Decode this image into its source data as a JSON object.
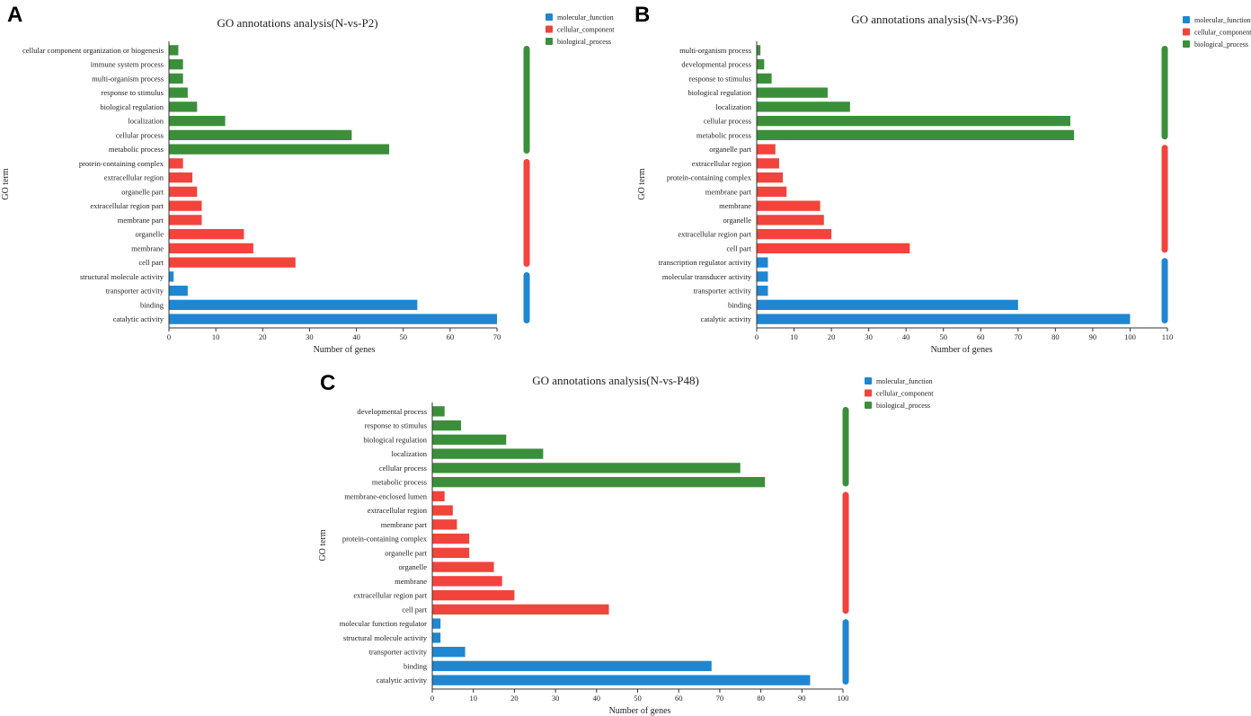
{
  "colors": {
    "molecular_function": "#1f86d2",
    "cellular_component": "#f2443c",
    "biological_process": "#3b8f3a"
  },
  "chart_data": [
    {
      "type": "bar",
      "orientation": "horizontal",
      "panel": "A",
      "title": "GO annotations analysis(N-vs-P2)",
      "xlabel": "Number of genes",
      "ylabel": "GO term",
      "xlim": [
        0,
        70
      ],
      "xticks": [
        0,
        10,
        20,
        30,
        40,
        50,
        60,
        70
      ],
      "legend": [
        "molecular_function",
        "cellular_component",
        "biological_process"
      ],
      "categories": [
        {
          "label": "cellular component organization or biogenesis",
          "value": 2,
          "group": "biological_process"
        },
        {
          "label": "immune system process",
          "value": 3,
          "group": "biological_process"
        },
        {
          "label": "multi-organism process",
          "value": 3,
          "group": "biological_process"
        },
        {
          "label": "response to stimulus",
          "value": 4,
          "group": "biological_process"
        },
        {
          "label": "biological regulation",
          "value": 6,
          "group": "biological_process"
        },
        {
          "label": "localization",
          "value": 12,
          "group": "biological_process"
        },
        {
          "label": "cellular process",
          "value": 39,
          "group": "biological_process"
        },
        {
          "label": "metabolic process",
          "value": 47,
          "group": "biological_process"
        },
        {
          "label": "protein-containing complex",
          "value": 3,
          "group": "cellular_component"
        },
        {
          "label": "extracellular region",
          "value": 5,
          "group": "cellular_component"
        },
        {
          "label": "organelle part",
          "value": 6,
          "group": "cellular_component"
        },
        {
          "label": "extracellular region part",
          "value": 7,
          "group": "cellular_component"
        },
        {
          "label": "membrane part",
          "value": 7,
          "group": "cellular_component"
        },
        {
          "label": "organelle",
          "value": 16,
          "group": "cellular_component"
        },
        {
          "label": "membrane",
          "value": 18,
          "group": "cellular_component"
        },
        {
          "label": "cell part",
          "value": 27,
          "group": "cellular_component"
        },
        {
          "label": "structural molecule activity",
          "value": 1,
          "group": "molecular_function"
        },
        {
          "label": "transporter activity",
          "value": 4,
          "group": "molecular_function"
        },
        {
          "label": "binding",
          "value": 53,
          "group": "molecular_function"
        },
        {
          "label": "catalytic activity",
          "value": 70,
          "group": "molecular_function"
        }
      ]
    },
    {
      "type": "bar",
      "orientation": "horizontal",
      "panel": "B",
      "title": "GO annotations analysis(N-vs-P36)",
      "xlabel": "Number of genes",
      "ylabel": "GO term",
      "xlim": [
        0,
        110
      ],
      "xticks": [
        0,
        10,
        20,
        30,
        40,
        50,
        60,
        70,
        80,
        90,
        100,
        110
      ],
      "legend": [
        "molecular_function",
        "cellular_component",
        "biological_process"
      ],
      "categories": [
        {
          "label": "multi-organism process",
          "value": 1,
          "group": "biological_process"
        },
        {
          "label": "developmental process",
          "value": 2,
          "group": "biological_process"
        },
        {
          "label": "response to stimulus",
          "value": 4,
          "group": "biological_process"
        },
        {
          "label": "biological regulation",
          "value": 19,
          "group": "biological_process"
        },
        {
          "label": "localization",
          "value": 25,
          "group": "biological_process"
        },
        {
          "label": "cellular process",
          "value": 84,
          "group": "biological_process"
        },
        {
          "label": "metabolic process",
          "value": 85,
          "group": "biological_process"
        },
        {
          "label": "organelle part",
          "value": 5,
          "group": "cellular_component"
        },
        {
          "label": "extracellular region",
          "value": 6,
          "group": "cellular_component"
        },
        {
          "label": "protein-containing complex",
          "value": 7,
          "group": "cellular_component"
        },
        {
          "label": "membrane part",
          "value": 8,
          "group": "cellular_component"
        },
        {
          "label": "membrane",
          "value": 17,
          "group": "cellular_component"
        },
        {
          "label": "organelle",
          "value": 18,
          "group": "cellular_component"
        },
        {
          "label": "extracellular region part",
          "value": 20,
          "group": "cellular_component"
        },
        {
          "label": "cell part",
          "value": 41,
          "group": "cellular_component"
        },
        {
          "label": "transcription regulator activity",
          "value": 3,
          "group": "molecular_function"
        },
        {
          "label": "molecular transducer activity",
          "value": 3,
          "group": "molecular_function"
        },
        {
          "label": "transporter activity",
          "value": 3,
          "group": "molecular_function"
        },
        {
          "label": "binding",
          "value": 70,
          "group": "molecular_function"
        },
        {
          "label": "catalytic activity",
          "value": 100,
          "group": "molecular_function"
        }
      ]
    },
    {
      "type": "bar",
      "orientation": "horizontal",
      "panel": "C",
      "title": "GO annotations analysis(N-vs-P48)",
      "xlabel": "Number of genes",
      "ylabel": "GO term",
      "xlim": [
        0,
        100
      ],
      "xticks": [
        0,
        10,
        20,
        30,
        40,
        50,
        60,
        70,
        80,
        90,
        100
      ],
      "legend": [
        "molecular_function",
        "cellular_component",
        "biological_process"
      ],
      "categories": [
        {
          "label": "developmental process",
          "value": 3,
          "group": "biological_process"
        },
        {
          "label": "response to stimulus",
          "value": 7,
          "group": "biological_process"
        },
        {
          "label": "biological regulation",
          "value": 18,
          "group": "biological_process"
        },
        {
          "label": "localization",
          "value": 27,
          "group": "biological_process"
        },
        {
          "label": "cellular process",
          "value": 75,
          "group": "biological_process"
        },
        {
          "label": "metabolic process",
          "value": 81,
          "group": "biological_process"
        },
        {
          "label": "membrane-enclosed lumen",
          "value": 3,
          "group": "cellular_component"
        },
        {
          "label": "extracellular region",
          "value": 5,
          "group": "cellular_component"
        },
        {
          "label": "membrane part",
          "value": 6,
          "group": "cellular_component"
        },
        {
          "label": "protein-containing complex",
          "value": 9,
          "group": "cellular_component"
        },
        {
          "label": "organelle part",
          "value": 9,
          "group": "cellular_component"
        },
        {
          "label": "organelle",
          "value": 15,
          "group": "cellular_component"
        },
        {
          "label": "membrane",
          "value": 17,
          "group": "cellular_component"
        },
        {
          "label": "extracellular region part",
          "value": 20,
          "group": "cellular_component"
        },
        {
          "label": "cell part",
          "value": 43,
          "group": "cellular_component"
        },
        {
          "label": "molecular function regulator",
          "value": 2,
          "group": "molecular_function"
        },
        {
          "label": "structural molecule activity",
          "value": 2,
          "group": "molecular_function"
        },
        {
          "label": "transporter activity",
          "value": 8,
          "group": "molecular_function"
        },
        {
          "label": "binding",
          "value": 68,
          "group": "molecular_function"
        },
        {
          "label": "catalytic activity",
          "value": 92,
          "group": "molecular_function"
        }
      ]
    }
  ]
}
